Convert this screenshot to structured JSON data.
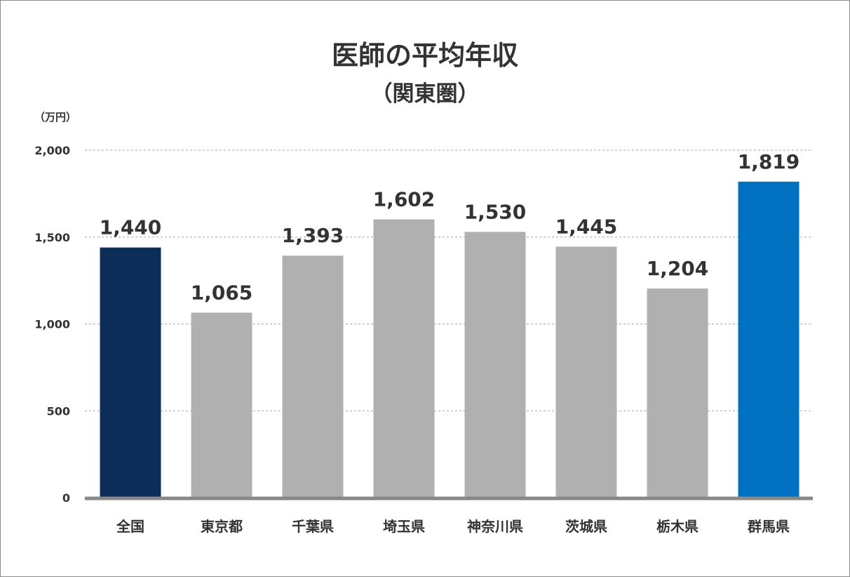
{
  "chart_data": {
    "type": "bar",
    "title": "医師の平均年収",
    "subtitle": "（関東圏）",
    "unit_label": "（万円）",
    "categories": [
      "全国",
      "東京都",
      "千葉県",
      "埼玉県",
      "神奈川県",
      "茨城県",
      "栃木県",
      "群馬県"
    ],
    "values": [
      1440,
      1065,
      1393,
      1602,
      1530,
      1445,
      1204,
      1819
    ],
    "value_labels": [
      "1,440",
      "1,065",
      "1,393",
      "1,602",
      "1,530",
      "1,445",
      "1,204",
      "1,819"
    ],
    "bar_colors": [
      "#0c2d57",
      "#b0b0b0",
      "#b0b0b0",
      "#b0b0b0",
      "#b0b0b0",
      "#b0b0b0",
      "#b0b0b0",
      "#0070c0"
    ],
    "ylim": [
      0,
      2000
    ],
    "yticks": [
      0,
      500,
      1000,
      1500,
      2000
    ],
    "ytick_labels": [
      "0",
      "500",
      "1,000",
      "1,500",
      "2,000"
    ],
    "grid": true,
    "grid_style": "dashed",
    "axis_color": "#888888",
    "xlabel": "",
    "ylabel": ""
  }
}
